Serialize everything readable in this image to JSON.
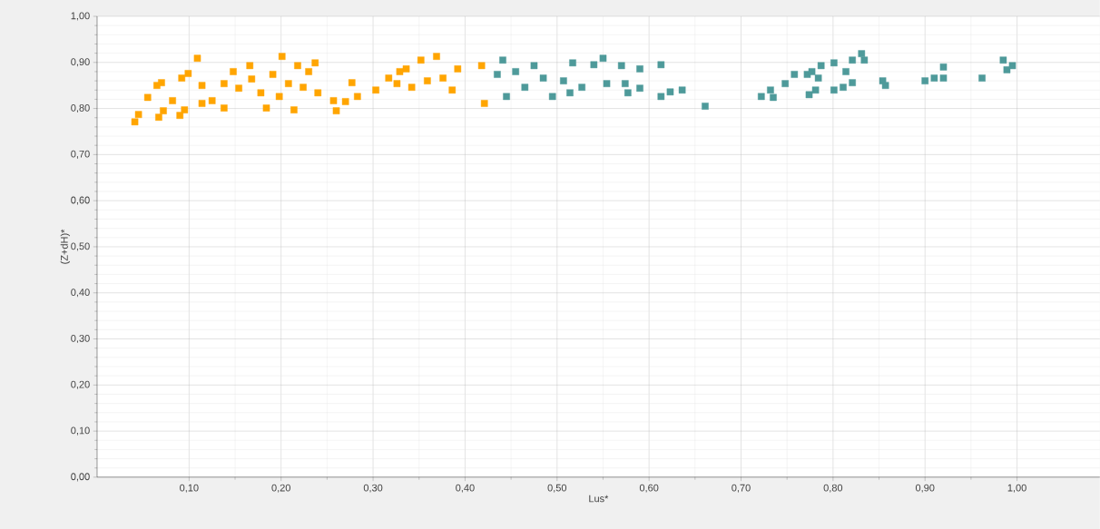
{
  "chart_data": {
    "type": "scatter",
    "xlabel": "Lus*",
    "ylabel": "(Z+dH)*",
    "marker": "square",
    "grid": true,
    "xlim": [
      0,
      1.09
    ],
    "ylim": [
      0,
      1
    ],
    "xticks": [
      {
        "value": 0.1,
        "label": "0,10"
      },
      {
        "value": 0.2,
        "label": "0,20"
      },
      {
        "value": 0.3,
        "label": "0,30"
      },
      {
        "value": 0.4,
        "label": "0,40"
      },
      {
        "value": 0.5,
        "label": "0,50"
      },
      {
        "value": 0.6,
        "label": "0,60"
      },
      {
        "value": 0.7,
        "label": "0,70"
      },
      {
        "value": 0.8,
        "label": "0,80"
      },
      {
        "value": 0.9,
        "label": "0,90"
      },
      {
        "value": 1.0,
        "label": "1,00"
      }
    ],
    "yticks": [
      {
        "value": 0,
        "label": "0,00"
      },
      {
        "value": 0.1,
        "label": "0,10"
      },
      {
        "value": 0.2,
        "label": "0,20"
      },
      {
        "value": 0.3,
        "label": "0,30"
      },
      {
        "value": 0.4,
        "label": "0,40"
      },
      {
        "value": 0.5,
        "label": "0,50"
      },
      {
        "value": 0.6,
        "label": "0,60"
      },
      {
        "value": 0.7,
        "label": "0,70"
      },
      {
        "value": 0.8,
        "label": "0,80"
      },
      {
        "value": 0.9,
        "label": "0,90"
      },
      {
        "value": 1.0,
        "label": "1,00"
      }
    ],
    "series": [
      {
        "color": "#ffa500",
        "x": [
          0.041,
          0.045,
          0.055,
          0.065,
          0.07,
          0.067,
          0.072,
          0.082,
          0.092,
          0.099,
          0.095,
          0.09,
          0.109,
          0.114,
          0.114,
          0.125,
          0.138,
          0.138,
          0.148,
          0.154,
          0.166,
          0.168,
          0.178,
          0.184,
          0.191,
          0.201,
          0.198,
          0.208,
          0.214,
          0.218,
          0.224,
          0.23,
          0.237,
          0.24,
          0.257,
          0.26,
          0.27,
          0.277,
          0.283,
          0.303,
          0.317,
          0.326,
          0.336,
          0.342,
          0.329,
          0.352,
          0.369,
          0.376,
          0.392,
          0.418,
          0.421,
          0.386,
          0.359
        ],
        "values": [
          0.771,
          0.787,
          0.824,
          0.85,
          0.856,
          0.781,
          0.795,
          0.817,
          0.866,
          0.876,
          0.797,
          0.785,
          0.909,
          0.85,
          0.811,
          0.817,
          0.801,
          0.854,
          0.88,
          0.844,
          0.893,
          0.864,
          0.834,
          0.801,
          0.874,
          0.913,
          0.826,
          0.854,
          0.797,
          0.893,
          0.846,
          0.88,
          0.899,
          0.834,
          0.817,
          0.795,
          0.815,
          0.856,
          0.826,
          0.84,
          0.866,
          0.854,
          0.886,
          0.846,
          0.88,
          0.905,
          0.913,
          0.866,
          0.886,
          0.893,
          0.811,
          0.84,
          0.86
        ]
      },
      {
        "color": "#4e9a9a",
        "x": [
          0.441,
          0.435,
          0.445,
          0.455,
          0.465,
          0.475,
          0.485,
          0.495,
          0.507,
          0.517,
          0.514,
          0.527,
          0.54,
          0.55,
          0.554,
          0.57,
          0.574,
          0.577,
          0.59,
          0.59,
          0.613,
          0.613,
          0.623,
          0.636,
          0.661,
          0.722,
          0.732,
          0.735,
          0.748,
          0.758,
          0.774,
          0.772,
          0.777,
          0.784,
          0.787,
          0.781,
          0.801,
          0.801,
          0.811,
          0.814,
          0.821,
          0.821,
          0.831,
          0.834,
          0.854,
          0.857,
          0.9,
          0.91,
          0.92,
          0.92,
          0.962,
          0.985,
          0.989,
          0.995
        ],
        "values": [
          0.905,
          0.874,
          0.826,
          0.88,
          0.846,
          0.893,
          0.866,
          0.826,
          0.86,
          0.899,
          0.834,
          0.846,
          0.895,
          0.909,
          0.854,
          0.893,
          0.854,
          0.834,
          0.886,
          0.844,
          0.895,
          0.826,
          0.836,
          0.84,
          0.805,
          0.826,
          0.84,
          0.824,
          0.854,
          0.874,
          0.83,
          0.874,
          0.88,
          0.866,
          0.893,
          0.84,
          0.899,
          0.84,
          0.846,
          0.88,
          0.856,
          0.905,
          0.919,
          0.905,
          0.86,
          0.85,
          0.86,
          0.866,
          0.89,
          0.866,
          0.866,
          0.905,
          0.884,
          0.893
        ]
      }
    ]
  }
}
